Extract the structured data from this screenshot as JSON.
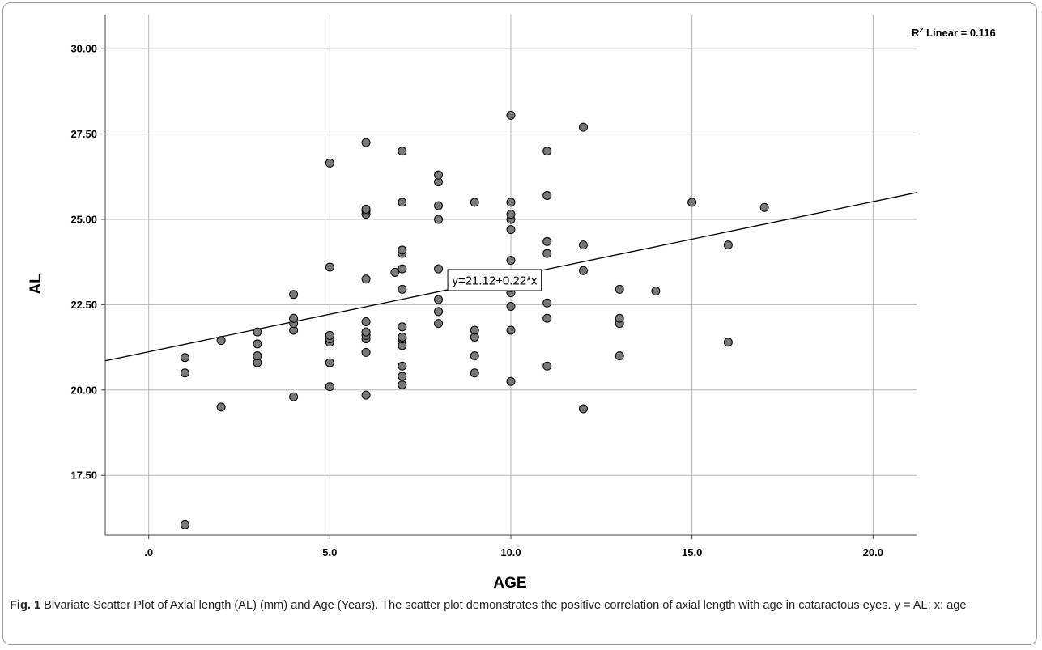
{
  "chart_data": {
    "type": "scatter",
    "xlabel": "AGE",
    "ylabel": "AL",
    "xlim": [
      -1.2,
      21.2
    ],
    "ylim": [
      15.75,
      31.0
    ],
    "x_ticks": [
      0,
      5,
      10,
      15,
      20
    ],
    "x_tick_labels": [
      ".0",
      "5.0",
      "10.0",
      "15.0",
      "20.0"
    ],
    "y_ticks": [
      17.5,
      20,
      22.5,
      25,
      27.5,
      30
    ],
    "y_tick_labels": [
      "17.50",
      "20.00",
      "22.50",
      "25.00",
      "27.50",
      "30.00"
    ],
    "grid": true,
    "r2_label": "Linear = 0.116",
    "r2_prefix": "R",
    "r2_sup": "2",
    "fit_line": {
      "intercept": 21.12,
      "slope": 0.22,
      "label": "y=21.12+0.22*x",
      "label_at_x": 9.55
    },
    "marker_color": "#787878",
    "points": [
      [
        1,
        16.05
      ],
      [
        1,
        20.5
      ],
      [
        1,
        20.95
      ],
      [
        2,
        19.5
      ],
      [
        2,
        21.45
      ],
      [
        3,
        20.8
      ],
      [
        3,
        21.0
      ],
      [
        3,
        21.35
      ],
      [
        3,
        21.7
      ],
      [
        4,
        19.8
      ],
      [
        4,
        21.75
      ],
      [
        4,
        21.95
      ],
      [
        4,
        22.1
      ],
      [
        4,
        22.8
      ],
      [
        5,
        20.1
      ],
      [
        5,
        20.8
      ],
      [
        5,
        21.4
      ],
      [
        5,
        21.5
      ],
      [
        5,
        21.6
      ],
      [
        5,
        23.6
      ],
      [
        5,
        26.65
      ],
      [
        6,
        19.85
      ],
      [
        6,
        21.1
      ],
      [
        6,
        21.5
      ],
      [
        6,
        21.6
      ],
      [
        6,
        21.7
      ],
      [
        6,
        22.0
      ],
      [
        6,
        23.25
      ],
      [
        6,
        25.15
      ],
      [
        6,
        25.25
      ],
      [
        6,
        25.3
      ],
      [
        6,
        27.25
      ],
      [
        6.8,
        23.45
      ],
      [
        7,
        20.15
      ],
      [
        7,
        20.4
      ],
      [
        7,
        20.7
      ],
      [
        7,
        21.3
      ],
      [
        7,
        21.5
      ],
      [
        7,
        21.55
      ],
      [
        7,
        21.85
      ],
      [
        7,
        22.95
      ],
      [
        7,
        23.55
      ],
      [
        7,
        24.0
      ],
      [
        7,
        24.1
      ],
      [
        7,
        25.5
      ],
      [
        7,
        27.0
      ],
      [
        8,
        21.95
      ],
      [
        8,
        22.3
      ],
      [
        8,
        22.65
      ],
      [
        8,
        23.55
      ],
      [
        8,
        25.0
      ],
      [
        8,
        25.4
      ],
      [
        8,
        26.1
      ],
      [
        8,
        26.3
      ],
      [
        9,
        20.5
      ],
      [
        9,
        21.0
      ],
      [
        9,
        21.55
      ],
      [
        9,
        21.75
      ],
      [
        9,
        23.05
      ],
      [
        9,
        25.5
      ],
      [
        10,
        20.25
      ],
      [
        10,
        21.75
      ],
      [
        10,
        22.45
      ],
      [
        10,
        22.85
      ],
      [
        10,
        23.0
      ],
      [
        10,
        23.8
      ],
      [
        10,
        24.7
      ],
      [
        10,
        25.0
      ],
      [
        10,
        25.15
      ],
      [
        10,
        25.5
      ],
      [
        10,
        28.05
      ],
      [
        11,
        20.7
      ],
      [
        11,
        22.1
      ],
      [
        11,
        22.55
      ],
      [
        11,
        24.0
      ],
      [
        11,
        24.35
      ],
      [
        11,
        25.7
      ],
      [
        11,
        27.0
      ],
      [
        12,
        19.45
      ],
      [
        12,
        23.5
      ],
      [
        12,
        24.25
      ],
      [
        12,
        27.7
      ],
      [
        13,
        21.0
      ],
      [
        13,
        21.95
      ],
      [
        13,
        22.1
      ],
      [
        13,
        22.95
      ],
      [
        14,
        22.9
      ],
      [
        15,
        25.5
      ],
      [
        16,
        21.4
      ],
      [
        16,
        24.25
      ],
      [
        17,
        25.35
      ]
    ]
  },
  "caption": {
    "fig_label": "Fig. 1",
    "text": "Bivariate Scatter Plot of Axial length (AL) (mm) and Age (Years). The scatter plot demonstrates the positive correlation of axial length with age in cataractous eyes. y = AL; x: age"
  }
}
